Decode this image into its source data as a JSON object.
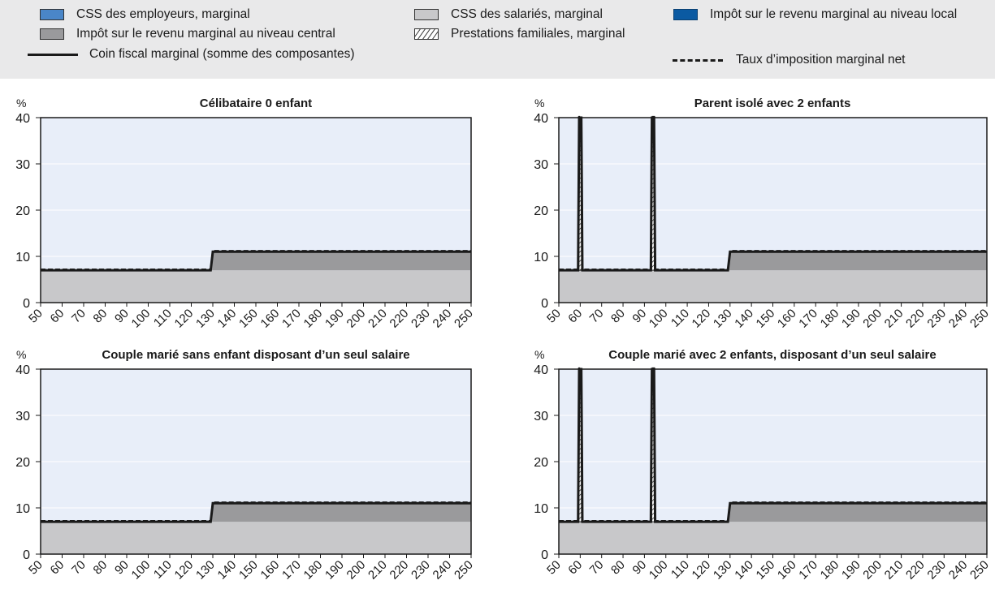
{
  "legend": {
    "items": [
      {
        "label": "CSS des employeurs, marginal",
        "color": "#4a86c8",
        "kind": "box"
      },
      {
        "label": "CSS des salariés, marginal",
        "color": "#c8c8ca",
        "kind": "box"
      },
      {
        "label": "Impôt sur le revenu marginal au niveau local",
        "color": "#0b5aa2",
        "kind": "box"
      },
      {
        "label": "Impôt sur le revenu marginal au niveau central",
        "color": "#9a9a9c",
        "kind": "box"
      },
      {
        "label": "Prestations familiales, marginal",
        "color": "#ffffff",
        "kind": "hatch"
      },
      {
        "label": "Coin fiscal marginal (somme des composantes)",
        "color": "#1a1a1a",
        "kind": "line"
      },
      {
        "label": "Taux d’imposition marginal net",
        "color": "#1a1a1a",
        "kind": "dashed"
      }
    ]
  },
  "chart_data": [
    {
      "type": "area",
      "title": "Célibataire 0 enfant",
      "ylabel": "%",
      "ylim": [
        0,
        40
      ],
      "yticks": [
        0,
        10,
        20,
        30,
        40
      ],
      "xticks": [
        50,
        60,
        70,
        80,
        90,
        100,
        110,
        120,
        130,
        140,
        150,
        160,
        170,
        180,
        190,
        200,
        210,
        220,
        230,
        240,
        250
      ],
      "xlim": [
        50,
        250
      ],
      "series": [
        {
          "name": "CSS des salariés, marginal",
          "points": [
            [
              50,
              7
            ],
            [
              250,
              7
            ]
          ]
        },
        {
          "name": "Impôt sur le revenu marginal au niveau central",
          "points": [
            [
              50,
              0
            ],
            [
              129,
              0
            ],
            [
              130,
              4
            ],
            [
              250,
              4
            ]
          ]
        },
        {
          "name": "Coin fiscal marginal (somme des composantes)",
          "points": [
            [
              50,
              7
            ],
            [
              129,
              7
            ],
            [
              130,
              11
            ],
            [
              250,
              11
            ]
          ]
        },
        {
          "name": "Taux d’imposition marginal net",
          "points": [
            [
              50,
              7
            ],
            [
              129,
              7
            ],
            [
              130,
              11
            ],
            [
              250,
              11
            ]
          ]
        }
      ]
    },
    {
      "type": "area",
      "title": "Parent isolé avec 2 enfants",
      "ylabel": "%",
      "ylim": [
        0,
        40
      ],
      "yticks": [
        0,
        10,
        20,
        30,
        40
      ],
      "xticks": [
        50,
        60,
        70,
        80,
        90,
        100,
        110,
        120,
        130,
        140,
        150,
        160,
        170,
        180,
        190,
        200,
        210,
        220,
        230,
        240,
        250
      ],
      "xlim": [
        50,
        250
      ],
      "series": [
        {
          "name": "CSS des salariés, marginal",
          "points": [
            [
              50,
              7
            ],
            [
              250,
              7
            ]
          ]
        },
        {
          "name": "Impôt sur le revenu marginal au niveau central",
          "points": [
            [
              50,
              0
            ],
            [
              129,
              0
            ],
            [
              130,
              4
            ],
            [
              250,
              4
            ]
          ]
        },
        {
          "name": "Prestations familiales, marginal",
          "spikes": [
            [
              60,
              40
            ],
            [
              94,
              40
            ]
          ]
        },
        {
          "name": "Coin fiscal marginal (somme des composantes)",
          "points": [
            [
              50,
              7
            ],
            [
              59,
              7
            ],
            [
              59.5,
              40
            ],
            [
              60.5,
              40
            ],
            [
              61,
              7
            ],
            [
              93,
              7
            ],
            [
              93.5,
              40
            ],
            [
              94.5,
              40
            ],
            [
              95,
              7
            ],
            [
              129,
              7
            ],
            [
              130,
              11
            ],
            [
              250,
              11
            ]
          ]
        },
        {
          "name": "Taux d’imposition marginal net",
          "points": [
            [
              50,
              7
            ],
            [
              59,
              7
            ],
            [
              59.5,
              40
            ],
            [
              60.5,
              40
            ],
            [
              61,
              7
            ],
            [
              93,
              7
            ],
            [
              93.5,
              40
            ],
            [
              94.5,
              40
            ],
            [
              95,
              7
            ],
            [
              129,
              7
            ],
            [
              130,
              11
            ],
            [
              250,
              11
            ]
          ]
        }
      ]
    },
    {
      "type": "area",
      "title": "Couple marié sans enfant disposant d’un seul salaire",
      "ylabel": "%",
      "ylim": [
        0,
        40
      ],
      "yticks": [
        0,
        10,
        20,
        30,
        40
      ],
      "xticks": [
        50,
        60,
        70,
        80,
        90,
        100,
        110,
        120,
        130,
        140,
        150,
        160,
        170,
        180,
        190,
        200,
        210,
        220,
        230,
        240,
        250
      ],
      "xlim": [
        50,
        250
      ],
      "series": [
        {
          "name": "CSS des salariés, marginal",
          "points": [
            [
              50,
              7
            ],
            [
              250,
              7
            ]
          ]
        },
        {
          "name": "Impôt sur le revenu marginal au niveau central",
          "points": [
            [
              50,
              0
            ],
            [
              129,
              0
            ],
            [
              130,
              4
            ],
            [
              250,
              4
            ]
          ]
        },
        {
          "name": "Coin fiscal marginal (somme des composantes)",
          "points": [
            [
              50,
              7
            ],
            [
              129,
              7
            ],
            [
              130,
              11
            ],
            [
              250,
              11
            ]
          ]
        },
        {
          "name": "Taux d’imposition marginal net",
          "points": [
            [
              50,
              7
            ],
            [
              129,
              7
            ],
            [
              130,
              11
            ],
            [
              250,
              11
            ]
          ]
        }
      ]
    },
    {
      "type": "area",
      "title": "Couple marié avec 2 enfants, disposant d’un seul salaire",
      "ylabel": "%",
      "ylim": [
        0,
        40
      ],
      "yticks": [
        0,
        10,
        20,
        30,
        40
      ],
      "xticks": [
        50,
        60,
        70,
        80,
        90,
        100,
        110,
        120,
        130,
        140,
        150,
        160,
        170,
        180,
        190,
        200,
        210,
        220,
        230,
        240,
        250
      ],
      "xlim": [
        50,
        250
      ],
      "series": [
        {
          "name": "CSS des salariés, marginal",
          "points": [
            [
              50,
              7
            ],
            [
              250,
              7
            ]
          ]
        },
        {
          "name": "Impôt sur le revenu marginal au niveau central",
          "points": [
            [
              50,
              0
            ],
            [
              129,
              0
            ],
            [
              130,
              4
            ],
            [
              250,
              4
            ]
          ]
        },
        {
          "name": "Prestations familiales, marginal",
          "spikes": [
            [
              60,
              40
            ],
            [
              94,
              40
            ]
          ]
        },
        {
          "name": "Coin fiscal marginal (somme des composantes)",
          "points": [
            [
              50,
              7
            ],
            [
              59,
              7
            ],
            [
              59.5,
              40
            ],
            [
              60.5,
              40
            ],
            [
              61,
              7
            ],
            [
              93,
              7
            ],
            [
              93.5,
              40
            ],
            [
              94.5,
              40
            ],
            [
              95,
              7
            ],
            [
              129,
              7
            ],
            [
              130,
              11
            ],
            [
              250,
              11
            ]
          ]
        },
        {
          "name": "Taux d’imposition marginal net",
          "points": [
            [
              50,
              7
            ],
            [
              59,
              7
            ],
            [
              59.5,
              40
            ],
            [
              60.5,
              40
            ],
            [
              61,
              7
            ],
            [
              93,
              7
            ],
            [
              93.5,
              40
            ],
            [
              94.5,
              40
            ],
            [
              95,
              7
            ],
            [
              129,
              7
            ],
            [
              130,
              11
            ],
            [
              250,
              11
            ]
          ]
        }
      ]
    }
  ],
  "colors": {
    "plot_bg": "#e8eef9",
    "employee_ssc": "#c8c8ca",
    "central_tax": "#9a9a9c",
    "line": "#1a1a1a"
  }
}
